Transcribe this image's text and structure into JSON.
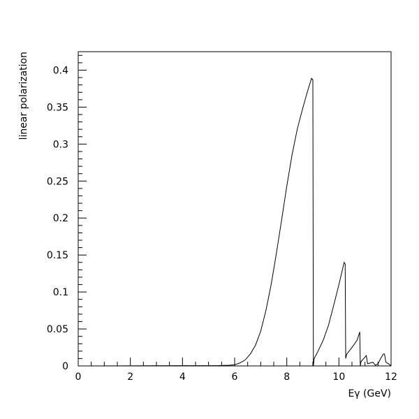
{
  "chart_data": {
    "type": "line",
    "xlabel": "Eγ (GeV)",
    "ylabel": "linear polarization",
    "xlim": [
      0,
      12
    ],
    "ylim": [
      0,
      0.425
    ],
    "xticks": [
      0,
      2,
      4,
      6,
      8,
      10,
      12
    ],
    "xtick_labels": [
      "0",
      "2",
      "4",
      "6",
      "8",
      "10",
      "12"
    ],
    "yticks": [
      0,
      0.05,
      0.1,
      0.15,
      0.2,
      0.25,
      0.3,
      0.35,
      0.4
    ],
    "ytick_labels": [
      "0",
      "0.05",
      "0.1",
      "0.15",
      "0.2",
      "0.25",
      "0.3",
      "0.35",
      "0.4"
    ],
    "grid": false,
    "series": [
      {
        "color": "#000000",
        "x": [
          0,
          5.4,
          5.8,
          6.0,
          6.2,
          6.4,
          6.6,
          6.8,
          7.0,
          7.2,
          7.4,
          7.6,
          7.8,
          8.0,
          8.2,
          8.4,
          8.6,
          8.8,
          8.95,
          9.0,
          9.02,
          9.05,
          9.2,
          9.4,
          9.6,
          9.8,
          10.0,
          10.2,
          10.24,
          10.26,
          10.3,
          10.5,
          10.7,
          10.8,
          10.82,
          10.85,
          11.0,
          11.05,
          11.1,
          11.3,
          11.4,
          11.5,
          11.6,
          11.7,
          11.75,
          11.8,
          11.9,
          12.0
        ],
        "y": [
          0,
          0.0005,
          0.001,
          0.0015,
          0.004,
          0.008,
          0.016,
          0.028,
          0.047,
          0.075,
          0.11,
          0.152,
          0.197,
          0.243,
          0.285,
          0.32,
          0.347,
          0.372,
          0.389,
          0.387,
          0.0,
          0.01,
          0.02,
          0.035,
          0.055,
          0.082,
          0.11,
          0.14,
          0.138,
          0.01,
          0.016,
          0.025,
          0.035,
          0.046,
          0.0,
          0.006,
          0.012,
          0.014,
          0.003,
          0.005,
          0.001,
          0.003,
          0.01,
          0.016,
          0.016,
          0.005,
          0.003,
          0.0
        ]
      }
    ]
  }
}
